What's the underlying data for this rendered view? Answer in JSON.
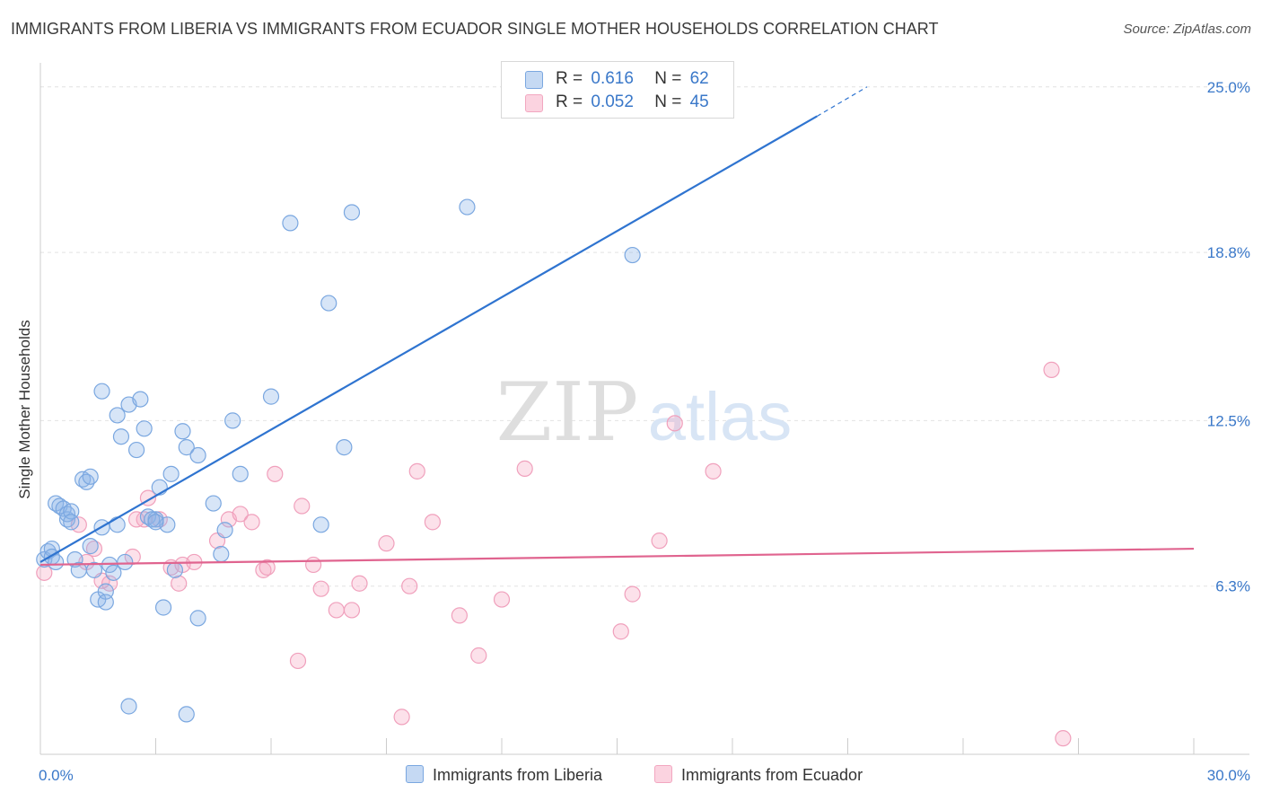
{
  "title": "IMMIGRANTS FROM LIBERIA VS IMMIGRANTS FROM ECUADOR SINGLE MOTHER HOUSEHOLDS CORRELATION CHART",
  "source": "Source: ZipAtlas.com",
  "watermark": {
    "zip": "ZIP",
    "atlas": "atlas"
  },
  "legend": {
    "liberia": {
      "r_label": "R =",
      "r_value": "0.616",
      "n_label": "N =",
      "n_value": "62"
    },
    "ecuador": {
      "r_label": "R =",
      "r_value": "0.052",
      "n_label": "N =",
      "n_value": "45"
    }
  },
  "chart_data": {
    "type": "scatter",
    "title": "IMMIGRANTS FROM LIBERIA VS IMMIGRANTS FROM ECUADOR SINGLE MOTHER HOUSEHOLDS CORRELATION CHART",
    "xlabel": "",
    "ylabel": "Single Mother Households",
    "xlim": [
      0,
      30
    ],
    "ylim": [
      0,
      25.9
    ],
    "x_tick_labels": [
      "0.0%",
      "30.0%"
    ],
    "y_ticks": [
      6.3,
      12.5,
      18.8,
      25.0
    ],
    "y_tick_labels": [
      "6.3%",
      "12.5%",
      "18.8%",
      "25.0%"
    ],
    "colors": {
      "liberia": "#7aa7e0",
      "liberia_line": "#2f74d0",
      "ecuador": "#f2a7c0",
      "ecuador_line": "#e0648f",
      "tick_label": "#3a78c9"
    },
    "series": [
      {
        "name": "Immigrants from Liberia",
        "trend": {
          "x0": 0,
          "y0": 7.2,
          "x1": 20.2,
          "y1": 23.9,
          "x_dash_end": 21.5,
          "y_dash_end": 25.0
        },
        "points": [
          [
            0.1,
            7.3
          ],
          [
            0.2,
            7.6
          ],
          [
            0.3,
            7.7
          ],
          [
            0.3,
            7.4
          ],
          [
            0.4,
            7.2
          ],
          [
            0.4,
            9.4
          ],
          [
            0.5,
            9.3
          ],
          [
            0.6,
            9.2
          ],
          [
            0.7,
            8.8
          ],
          [
            0.7,
            9.0
          ],
          [
            0.8,
            9.1
          ],
          [
            0.9,
            7.3
          ],
          [
            1.0,
            6.9
          ],
          [
            1.1,
            10.3
          ],
          [
            1.2,
            10.2
          ],
          [
            1.3,
            10.4
          ],
          [
            1.3,
            7.8
          ],
          [
            1.4,
            6.9
          ],
          [
            1.5,
            5.8
          ],
          [
            1.6,
            13.6
          ],
          [
            1.7,
            6.1
          ],
          [
            1.7,
            5.7
          ],
          [
            1.8,
            7.1
          ],
          [
            1.9,
            6.8
          ],
          [
            2.0,
            12.7
          ],
          [
            2.0,
            8.6
          ],
          [
            2.1,
            11.9
          ],
          [
            2.2,
            7.2
          ],
          [
            2.3,
            13.1
          ],
          [
            2.5,
            11.4
          ],
          [
            2.6,
            13.3
          ],
          [
            2.7,
            12.2
          ],
          [
            2.8,
            8.9
          ],
          [
            3.0,
            8.8
          ],
          [
            3.1,
            10.0
          ],
          [
            3.2,
            5.5
          ],
          [
            3.3,
            8.6
          ],
          [
            3.4,
            10.5
          ],
          [
            3.5,
            6.9
          ],
          [
            3.7,
            12.1
          ],
          [
            3.8,
            11.5
          ],
          [
            4.1,
            11.2
          ],
          [
            4.5,
            9.4
          ],
          [
            4.7,
            7.5
          ],
          [
            4.8,
            8.4
          ],
          [
            5.0,
            12.5
          ],
          [
            5.2,
            10.5
          ],
          [
            6.0,
            13.4
          ],
          [
            6.5,
            19.9
          ],
          [
            7.3,
            8.6
          ],
          [
            7.5,
            16.9
          ],
          [
            7.9,
            11.5
          ],
          [
            8.1,
            20.3
          ],
          [
            11.1,
            20.5
          ],
          [
            15.4,
            18.7
          ],
          [
            2.3,
            1.8
          ],
          [
            3.8,
            1.5
          ],
          [
            4.1,
            5.1
          ],
          [
            2.9,
            8.8
          ],
          [
            3.0,
            8.7
          ],
          [
            1.6,
            8.5
          ],
          [
            0.8,
            8.7
          ]
        ]
      },
      {
        "name": "Immigrants from Ecuador",
        "trend": {
          "x0": 0,
          "y0": 7.1,
          "x1": 30,
          "y1": 7.7
        },
        "points": [
          [
            0.1,
            6.8
          ],
          [
            1.0,
            8.6
          ],
          [
            1.4,
            7.7
          ],
          [
            1.6,
            6.5
          ],
          [
            1.8,
            6.4
          ],
          [
            2.4,
            7.4
          ],
          [
            2.7,
            8.8
          ],
          [
            2.8,
            9.6
          ],
          [
            3.1,
            8.8
          ],
          [
            3.4,
            7.0
          ],
          [
            3.7,
            7.1
          ],
          [
            3.6,
            6.4
          ],
          [
            4.0,
            7.2
          ],
          [
            4.6,
            8.0
          ],
          [
            4.9,
            8.8
          ],
          [
            5.2,
            9.0
          ],
          [
            5.5,
            8.7
          ],
          [
            5.8,
            6.9
          ],
          [
            6.1,
            10.5
          ],
          [
            6.7,
            3.5
          ],
          [
            6.8,
            9.3
          ],
          [
            7.1,
            7.1
          ],
          [
            7.3,
            6.2
          ],
          [
            7.7,
            5.4
          ],
          [
            8.1,
            5.4
          ],
          [
            8.3,
            6.4
          ],
          [
            9.0,
            7.9
          ],
          [
            9.4,
            1.4
          ],
          [
            9.6,
            6.3
          ],
          [
            9.8,
            10.6
          ],
          [
            10.2,
            8.7
          ],
          [
            10.9,
            5.2
          ],
          [
            11.4,
            3.7
          ],
          [
            12.0,
            5.8
          ],
          [
            12.6,
            10.7
          ],
          [
            15.1,
            4.6
          ],
          [
            15.4,
            6.0
          ],
          [
            16.1,
            8.0
          ],
          [
            16.5,
            12.4
          ],
          [
            17.5,
            10.6
          ],
          [
            26.3,
            14.4
          ],
          [
            26.6,
            0.6
          ],
          [
            2.5,
            8.8
          ],
          [
            1.2,
            7.2
          ],
          [
            5.9,
            7.0
          ]
        ]
      }
    ]
  },
  "bottom_legend": {
    "liberia": "Immigrants from Liberia",
    "ecuador": "Immigrants from Ecuador"
  }
}
